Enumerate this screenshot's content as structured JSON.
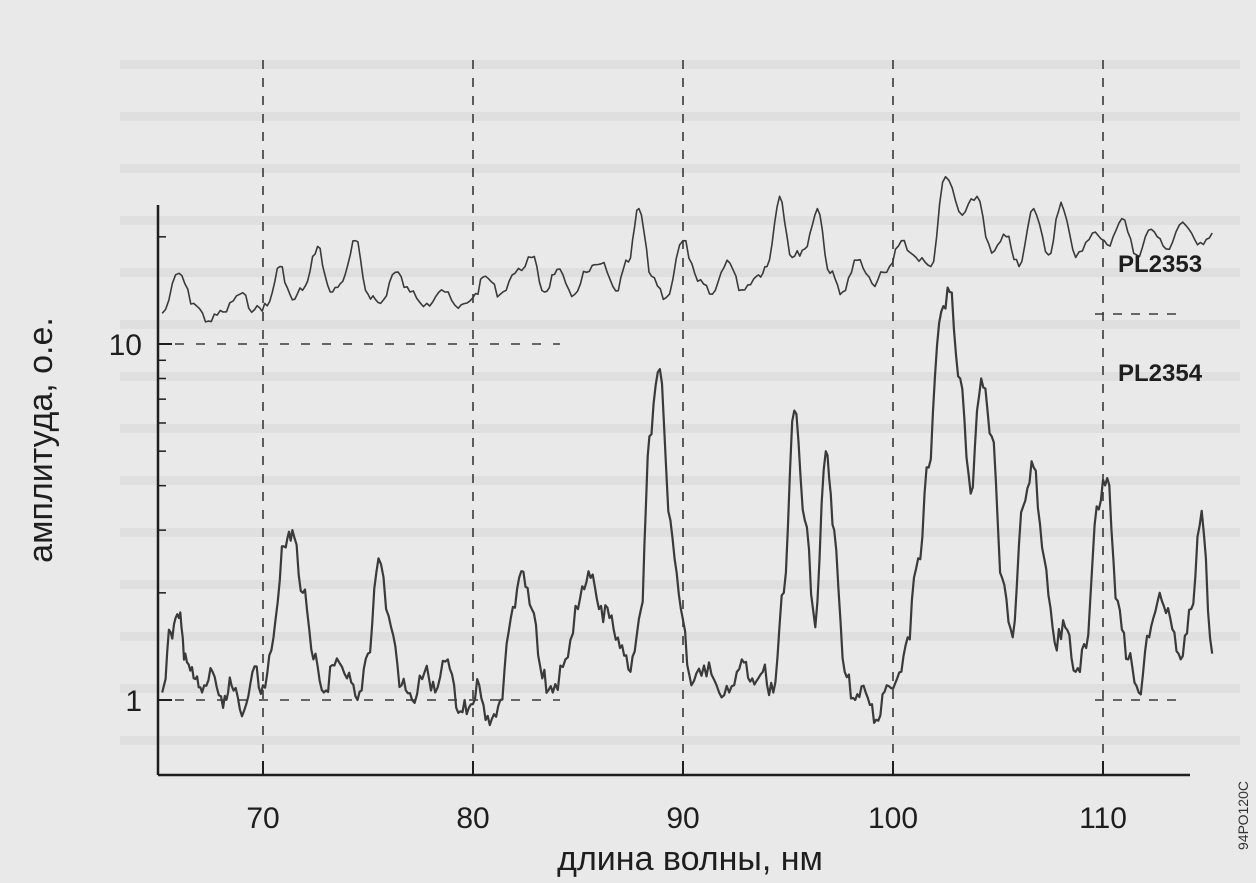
{
  "chart_data": {
    "type": "line",
    "title": "",
    "xlabel": "длина волны, нм",
    "ylabel": "амплитуда, о.е.",
    "xlim": [
      65,
      115.5
    ],
    "ylim": [
      0.75,
      30
    ],
    "y_scale": "log",
    "x_ticks": [
      70,
      80,
      90,
      100,
      110
    ],
    "x_tick_labels": [
      "70",
      "80",
      "90",
      "100",
      "110"
    ],
    "y_ticks": [
      1,
      10
    ],
    "y_tick_labels": [
      "1",
      "10"
    ],
    "grid": "dashed vertical lines at 70, 80, 90, 100, 110 nm; short dashed horizontal marks at 1 and 10",
    "side_code": "94РО120С",
    "series": [
      {
        "name": "PL2353",
        "color": "#3a3a3a",
        "x": [
          65.2,
          66.0,
          66.7,
          67.4,
          68.1,
          68.9,
          69.6,
          70.2,
          70.8,
          71.4,
          72.0,
          72.6,
          73.2,
          73.8,
          74.4,
          75.0,
          75.6,
          76.3,
          77.0,
          77.8,
          78.5,
          79.3,
          80.0,
          80.6,
          81.3,
          82.0,
          82.8,
          83.4,
          84.0,
          84.7,
          85.4,
          86.1,
          86.8,
          87.4,
          87.9,
          88.5,
          89.2,
          90.0,
          90.7,
          91.4,
          92.1,
          92.8,
          93.5,
          94.0,
          94.6,
          95.2,
          95.8,
          96.4,
          97.0,
          97.6,
          98.3,
          99.0,
          99.7,
          100.4,
          101.1,
          101.8,
          102.5,
          103.3,
          104.0,
          104.7,
          105.4,
          106.0,
          106.7,
          107.4,
          108.0,
          108.7,
          109.5,
          110.2,
          110.9,
          111.6,
          112.3,
          113.0,
          113.8,
          114.5,
          115.2
        ],
        "y": [
          12.2,
          15.8,
          13.0,
          11.6,
          12.3,
          13.8,
          12.5,
          12.8,
          16.5,
          13.3,
          14.5,
          18.8,
          14.0,
          15.0,
          19.5,
          13.8,
          13.0,
          15.9,
          14.0,
          13.0,
          14.2,
          12.6,
          13.5,
          15.5,
          13.8,
          15.8,
          17.5,
          14.0,
          16.2,
          13.6,
          15.9,
          16.8,
          14.1,
          17.0,
          24.0,
          15.5,
          13.5,
          19.5,
          15.0,
          13.8,
          17.2,
          14.2,
          15.5,
          16.5,
          26.0,
          17.5,
          18.5,
          24.0,
          15.8,
          14.0,
          17.2,
          14.8,
          15.9,
          19.5,
          17.5,
          16.5,
          29.5,
          23.0,
          26.0,
          18.0,
          20.0,
          16.5,
          24.0,
          17.8,
          25.0,
          17.5,
          20.5,
          19.0,
          22.5,
          17.8,
          21.0,
          18.5,
          22.0,
          19.0,
          20.5
        ]
      },
      {
        "name": "PL2354",
        "color": "#3a3a3a",
        "x": [
          65.2,
          65.6,
          66.0,
          66.3,
          66.7,
          67.1,
          67.6,
          68.1,
          68.5,
          69.0,
          69.5,
          70.0,
          70.5,
          71.0,
          71.4,
          71.9,
          72.4,
          72.9,
          73.4,
          74.0,
          74.5,
          75.0,
          75.5,
          76.1,
          76.6,
          77.1,
          77.7,
          78.2,
          78.8,
          79.3,
          79.8,
          80.3,
          80.8,
          81.3,
          81.8,
          82.3,
          82.8,
          83.3,
          83.8,
          84.4,
          85.0,
          85.5,
          86.0,
          86.5,
          87.0,
          87.5,
          88.0,
          88.4,
          88.9,
          89.4,
          89.9,
          90.4,
          91.0,
          91.6,
          92.2,
          92.8,
          93.3,
          93.8,
          94.3,
          94.8,
          95.3,
          95.8,
          96.3,
          96.8,
          97.2,
          97.7,
          98.2,
          98.7,
          99.2,
          99.7,
          100.2,
          100.7,
          101.2,
          101.7,
          102.2,
          102.7,
          103.2,
          103.7,
          104.2,
          104.7,
          105.2,
          105.7,
          106.2,
          106.7,
          107.2,
          107.7,
          108.2,
          108.7,
          109.2,
          109.7,
          110.2,
          110.7,
          111.2,
          111.7,
          112.2,
          112.7,
          113.2,
          113.7,
          114.2,
          114.7,
          115.2
        ],
        "y": [
          1.05,
          1.55,
          1.7,
          1.35,
          1.15,
          1.05,
          1.2,
          0.95,
          1.1,
          0.9,
          1.2,
          1.1,
          1.5,
          2.7,
          3.0,
          2.0,
          1.3,
          1.05,
          1.25,
          1.15,
          1.0,
          1.35,
          2.5,
          1.6,
          1.1,
          1.0,
          1.2,
          1.05,
          1.3,
          0.92,
          0.95,
          1.1,
          0.85,
          1.0,
          1.7,
          2.3,
          1.8,
          1.15,
          1.05,
          1.3,
          1.8,
          2.3,
          1.8,
          1.7,
          1.4,
          1.2,
          1.8,
          5.5,
          8.5,
          3.2,
          1.8,
          1.1,
          1.25,
          1.1,
          1.05,
          1.3,
          1.15,
          1.2,
          1.05,
          2.0,
          6.5,
          3.2,
          1.6,
          5.0,
          3.0,
          1.2,
          1.0,
          1.05,
          0.88,
          1.1,
          1.15,
          1.5,
          2.5,
          4.5,
          11.5,
          14.0,
          8.0,
          3.8,
          8.0,
          5.5,
          2.2,
          1.5,
          3.5,
          4.5,
          2.5,
          1.45,
          1.6,
          1.2,
          1.4,
          3.5,
          4.2,
          1.9,
          1.3,
          1.05,
          1.5,
          2.0,
          1.7,
          1.3,
          1.8,
          3.4,
          1.35
        ]
      }
    ]
  }
}
